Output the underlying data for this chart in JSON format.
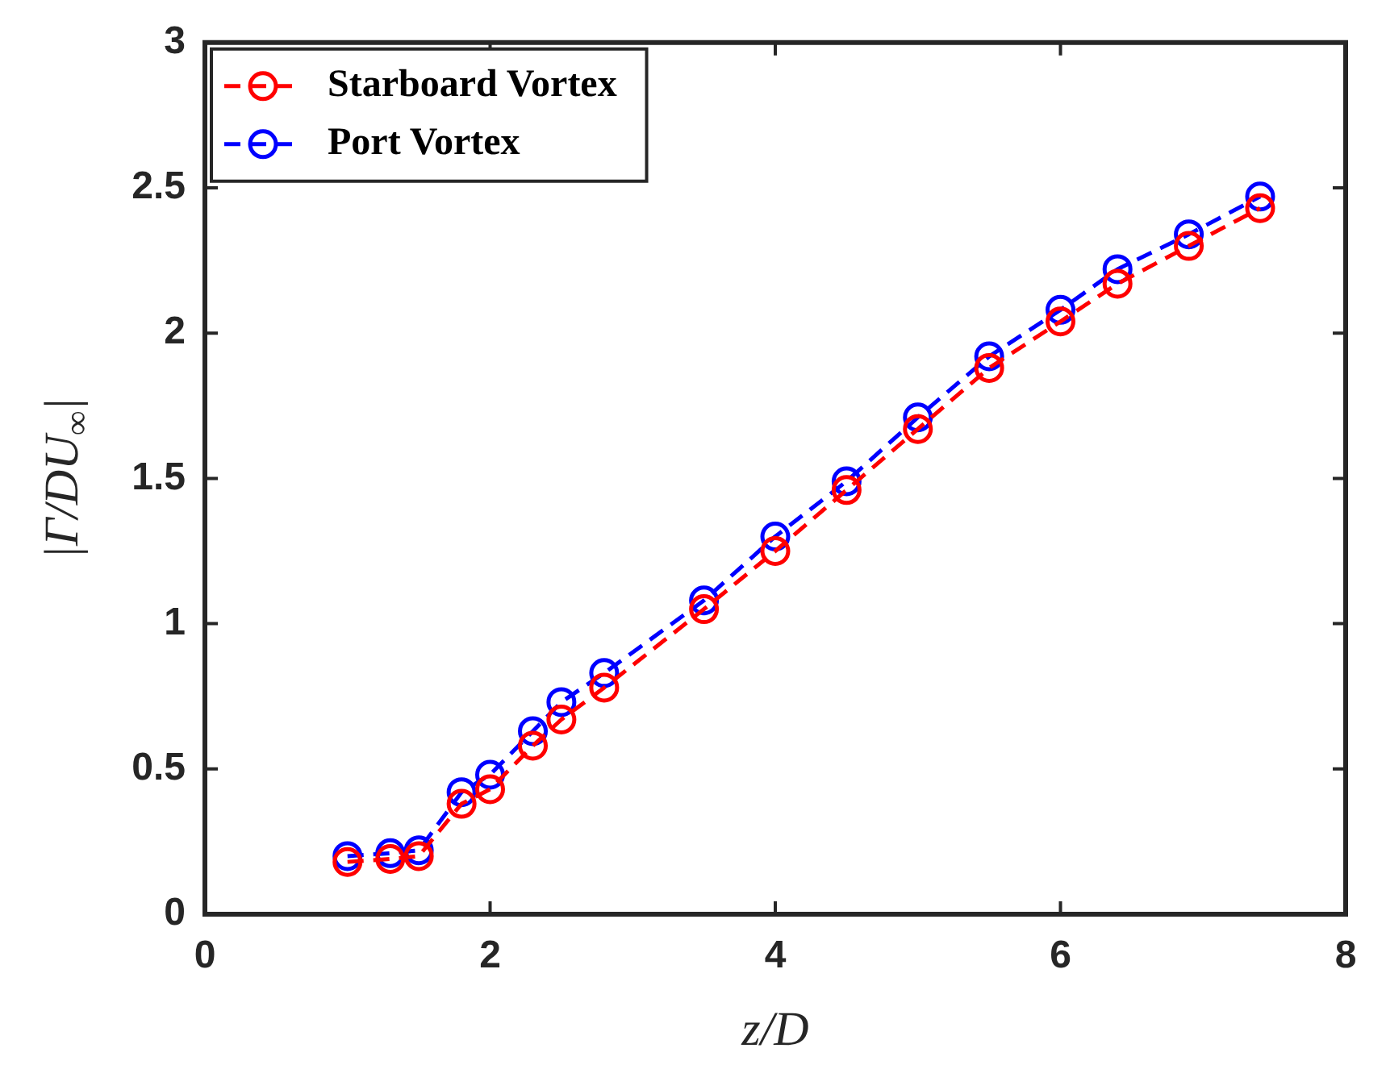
{
  "chart_data": {
    "type": "line",
    "xlabel": "z/D",
    "ylabel": "|Γ/DU$_{∞}$|",
    "x": [
      1,
      1.3,
      1.5,
      1.8,
      2,
      2.3,
      2.5,
      2.8,
      3.5,
      4,
      4.5,
      5,
      5.5,
      6,
      6.4,
      6.9,
      7.4
    ],
    "series": [
      {
        "name": "Starboard Vortex",
        "color": "#ff0000",
        "values": [
          0.18,
          0.19,
          0.2,
          0.38,
          0.43,
          0.58,
          0.67,
          0.78,
          1.05,
          1.25,
          1.46,
          1.67,
          1.88,
          2.04,
          2.17,
          2.3,
          2.43
        ]
      },
      {
        "name": "Port Vortex",
        "color": "#0000ff",
        "values": [
          0.2,
          0.21,
          0.22,
          0.42,
          0.48,
          0.63,
          0.73,
          0.83,
          1.08,
          1.3,
          1.49,
          1.71,
          1.92,
          2.08,
          2.22,
          2.34,
          2.47
        ]
      }
    ],
    "xlim": [
      0,
      8
    ],
    "xticks": [
      0,
      2,
      4,
      6,
      8
    ],
    "ylim": [
      0,
      3
    ],
    "yticks": [
      0,
      0.5,
      1,
      1.5,
      2,
      2.5,
      3
    ],
    "legend": "top left",
    "marker": "circle",
    "line_style": "dashed",
    "grid": false
  }
}
